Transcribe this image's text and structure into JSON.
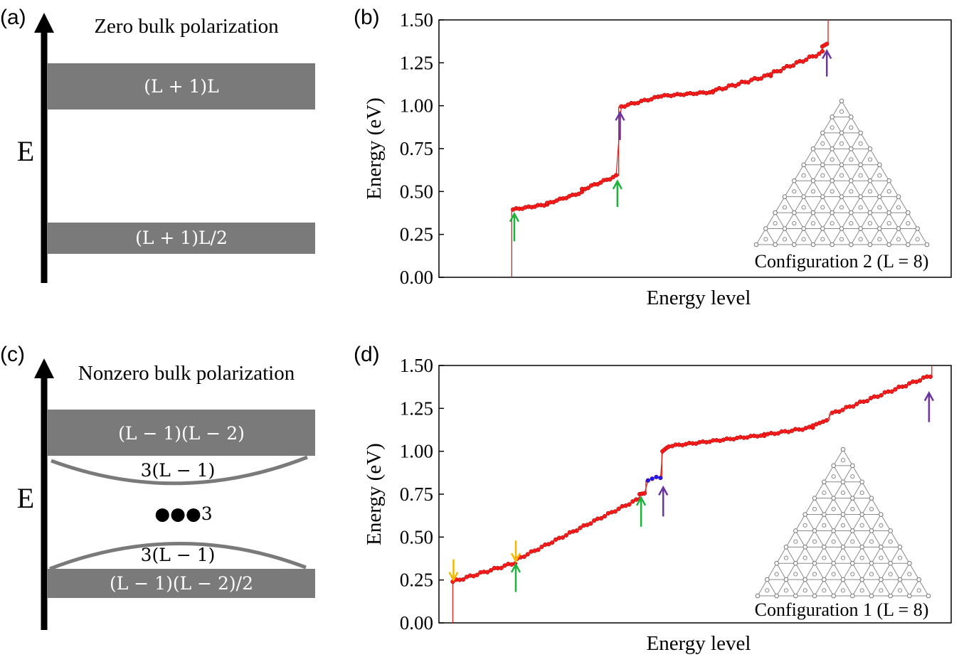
{
  "panel_a": {
    "label": "(a)",
    "title": "Zero bulk polarization",
    "axis_label": "E",
    "bands": [
      "(L + 1)L",
      "(L + 1)L/2"
    ]
  },
  "panel_c": {
    "label": "(c)",
    "title": "Nonzero bulk polarization",
    "axis_label": "E",
    "bands": [
      "(L − 1)(L − 2)",
      "(L − 1)(L − 2)/2"
    ],
    "arc_labels": [
      "3(L − 1)",
      "3(L − 1)"
    ],
    "corner_label": "●●●3"
  },
  "colors": {
    "band": "#7a7a7a",
    "curve": "#e0201b",
    "marker": "#ff1a1a",
    "corner_marker": "#1a1aff",
    "green_arrow": "#1db33a",
    "purple_arrow": "#6a35a0",
    "yellow_arrow": "#f5b800",
    "lattice": "#8a8a8a"
  },
  "chart_data": [
    {
      "panel": "(b)",
      "type": "line",
      "xlabel": "Energy level",
      "ylabel": "Energy (eV)",
      "ylim": [
        0,
        1.5
      ],
      "yticks": [
        "0.00",
        "0.25",
        "0.50",
        "0.75",
        "1.00",
        "1.25",
        "1.50"
      ],
      "inset_label": "Configuration 2 (L = 8)",
      "x_range": [
        -115,
        680
      ],
      "segments": [
        {
          "x0": 0,
          "x1": 53,
          "y0": 0.395,
          "y1": 0.425,
          "wiggle": 0.004
        },
        {
          "x0": 53,
          "x1": 107,
          "y0": 0.43,
          "y1": 0.495,
          "wiggle": 0.004
        },
        {
          "x0": 107,
          "x1": 160,
          "y0": 0.51,
          "y1": 0.59,
          "wiggle": 0.005
        },
        {
          "x0": 168,
          "x1": 225,
          "y0": 0.995,
          "y1": 1.05,
          "wiggle": 0.005
        },
        {
          "x0": 225,
          "x1": 310,
          "y0": 1.055,
          "y1": 1.08,
          "wiggle": 0.004
        },
        {
          "x0": 310,
          "x1": 400,
          "y0": 1.085,
          "y1": 1.18,
          "wiggle": 0.007
        },
        {
          "x0": 400,
          "x1": 480,
          "y0": 1.185,
          "y1": 1.31,
          "wiggle": 0.007
        },
        {
          "x0": 480,
          "x1": 487,
          "y0": 1.345,
          "y1": 1.36,
          "wiggle": 0.0
        }
      ],
      "vertical_jumps": [
        {
          "x": -2,
          "y_from": 0.0,
          "y_to": 0.395
        },
        {
          "x": 164,
          "y_from": 0.59,
          "y_to": 0.995
        },
        {
          "x": 489,
          "y_from": 1.36,
          "y_to": 1.5
        }
      ],
      "arrows": [
        {
          "x": 2,
          "y_tail": 0.21,
          "y_head": 0.37,
          "color": "green"
        },
        {
          "x": 162,
          "y_tail": 0.41,
          "y_head": 0.56,
          "color": "green"
        },
        {
          "x": 166,
          "y_tail": 0.8,
          "y_head": 0.96,
          "color": "purple"
        },
        {
          "x": 487,
          "y_tail": 1.17,
          "y_head": 1.32,
          "color": "purple"
        }
      ]
    },
    {
      "panel": "(d)",
      "type": "line",
      "xlabel": "Energy level",
      "ylabel": "Energy (eV)",
      "ylim": [
        0,
        1.5
      ],
      "yticks": [
        "0.00",
        "0.25",
        "0.50",
        "0.75",
        "1.00",
        "1.25",
        "1.50"
      ],
      "inset_label": "Configuration 1 (L = 8)",
      "x_range": [
        -20,
        720
      ],
      "segments": [
        {
          "x0": 0,
          "x1": 90,
          "y0": 0.24,
          "y1": 0.35,
          "wiggle": 0.006
        },
        {
          "x0": 93,
          "x1": 270,
          "y0": 0.37,
          "y1": 0.725,
          "wiggle": 0.005
        },
        {
          "x0": 270,
          "x1": 277,
          "y0": 0.75,
          "y1": 0.755,
          "wiggle": 0.0
        },
        {
          "x0": 303,
          "x1": 309,
          "y0": 1.0,
          "y1": 1.02,
          "wiggle": 0.0
        },
        {
          "x0": 312,
          "x1": 450,
          "y0": 1.03,
          "y1": 1.095,
          "wiggle": 0.004
        },
        {
          "x0": 450,
          "x1": 520,
          "y0": 1.095,
          "y1": 1.14,
          "wiggle": 0.005
        },
        {
          "x0": 520,
          "x1": 540,
          "y0": 1.15,
          "y1": 1.18,
          "wiggle": 0.0
        },
        {
          "x0": 548,
          "x1": 690,
          "y0": 1.22,
          "y1": 1.44,
          "wiggle": 0.006
        }
      ],
      "corner_states": {
        "x": [
          282,
          288,
          294,
          300
        ],
        "y": [
          0.83,
          0.84,
          0.85,
          0.845
        ]
      },
      "vertical_jumps": [
        {
          "x": 0,
          "y_from": 0.0,
          "y_to": 0.24
        },
        {
          "x": 91,
          "y_from": 0.35,
          "y_to": 0.37
        },
        {
          "x": 279,
          "y_from": 0.755,
          "y_to": 0.83
        },
        {
          "x": 302,
          "y_from": 0.845,
          "y_to": 1.0
        },
        {
          "x": 544,
          "y_from": 1.18,
          "y_to": 1.22
        },
        {
          "x": 692,
          "y_from": 1.44,
          "y_to": 1.5
        }
      ],
      "arrows": [
        {
          "x": 1,
          "y_tail": 0.37,
          "y_head": 0.25,
          "color": "yellow"
        },
        {
          "x": 91,
          "y_tail": 0.48,
          "y_head": 0.36,
          "color": "yellow"
        },
        {
          "x": 91,
          "y_tail": 0.18,
          "y_head": 0.34,
          "color": "green"
        },
        {
          "x": 272,
          "y_tail": 0.56,
          "y_head": 0.73,
          "color": "green"
        },
        {
          "x": 304,
          "y_tail": 0.62,
          "y_head": 0.79,
          "color": "purple"
        },
        {
          "x": 688,
          "y_tail": 1.17,
          "y_head": 1.34,
          "color": "purple"
        }
      ]
    }
  ]
}
